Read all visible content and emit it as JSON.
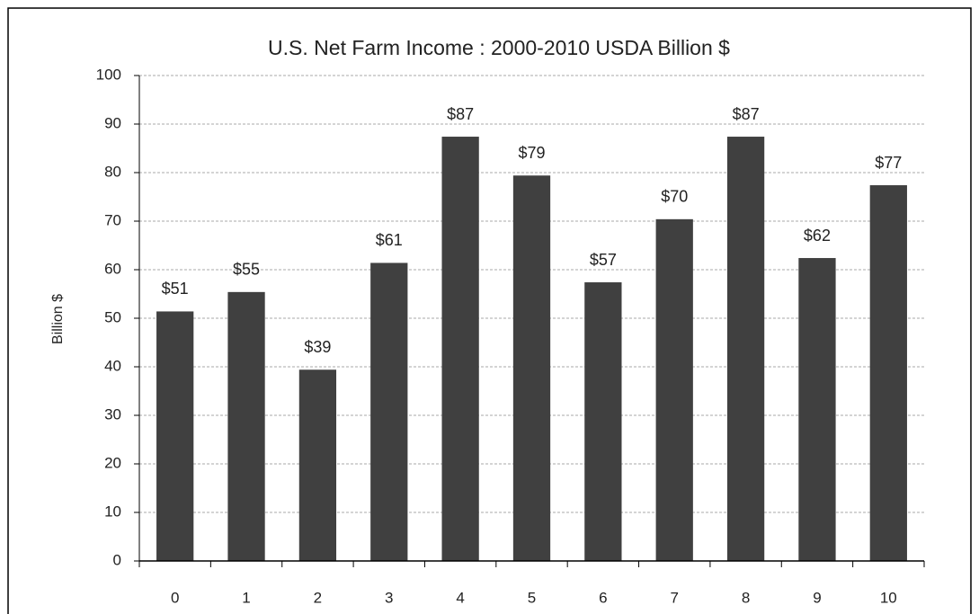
{
  "chart_data": {
    "type": "bar",
    "title": "U.S. Net Farm Income :  2000-2010 USDA Billion $",
    "y_label": "Billion $",
    "categories": [
      "0",
      "1",
      "2",
      "3",
      "4",
      "5",
      "6",
      "7",
      "8",
      "9",
      "10"
    ],
    "values": [
      51.4,
      55.4,
      39.4,
      61.4,
      87.4,
      79.4,
      57.4,
      70.4,
      87.4,
      62.4,
      77.4
    ],
    "value_labels": [
      "$51",
      "$55",
      "$39",
      "$61",
      "$87",
      "$79",
      "$57",
      "$70",
      "$87",
      "$62",
      "$77"
    ],
    "color": "#404040",
    "ylim": [
      0,
      100
    ],
    "yticks": [
      0,
      10,
      20,
      30,
      40,
      50,
      60,
      70,
      80,
      90,
      100
    ],
    "grid": true
  }
}
